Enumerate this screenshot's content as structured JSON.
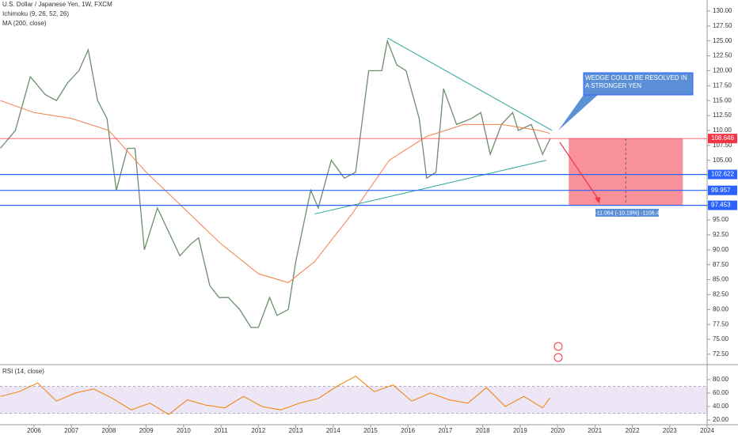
{
  "chart_data": [
    {
      "type": "line",
      "title": "U.S. Dollar / Japanese Yen, 1W, FXCM",
      "indicators": [
        "Ichimoku (9, 26, 52, 26)"
      ],
      "xlim": [
        2005.09,
        2024.0
      ],
      "ylim": [
        70.9,
        131.85
      ],
      "yticks": [
        {
          "value": 72.5,
          "label": "72.50"
        },
        {
          "value": 75,
          "label": "75.00"
        },
        {
          "value": 77.5,
          "label": "77.50"
        },
        {
          "value": 80,
          "label": "80.00"
        },
        {
          "value": 82.5,
          "label": "82.50"
        },
        {
          "value": 85,
          "label": "85.00"
        },
        {
          "value": 87.5,
          "label": "87.50"
        },
        {
          "value": 90,
          "label": "90.00"
        },
        {
          "value": 92.5,
          "label": "92.50"
        },
        {
          "value": 95,
          "label": "95.00"
        },
        {
          "value": 97.5,
          "label": "97.50"
        },
        {
          "value": 100,
          "label": "100.00"
        },
        {
          "value": 102.5,
          "label": "102.50"
        },
        {
          "value": 105,
          "label": "105.00"
        },
        {
          "value": 107.5,
          "label": "107.50"
        },
        {
          "value": 110,
          "label": "110.00"
        },
        {
          "value": 112.5,
          "label": "112.50"
        },
        {
          "value": 115,
          "label": "115.00"
        },
        {
          "value": 117.5,
          "label": "117.50"
        },
        {
          "value": 120,
          "label": "120.00"
        },
        {
          "value": 122.5,
          "label": "122.50"
        },
        {
          "value": 125,
          "label": "125.00"
        },
        {
          "value": 127.5,
          "label": "127.50"
        },
        {
          "value": 130,
          "label": "130.00"
        }
      ],
      "series": [
        {
          "name": "U.S. Dollar / Japanese Yen, 1W, FXCM",
          "color": "#6b8e6b",
          "x": [
            2005.1,
            2005.5,
            2005.9,
            2006.3,
            2006.6,
            2006.9,
            2007.2,
            2007.45,
            2007.7,
            2007.95,
            2008.2,
            2008.5,
            2008.7,
            2008.95,
            2009.3,
            2009.6,
            2009.9,
            2010.2,
            2010.4,
            2010.7,
            2010.95,
            2011.2,
            2011.5,
            2011.8,
            2012.0,
            2012.3,
            2012.5,
            2012.8,
            2013.0,
            2013.4,
            2013.6,
            2013.95,
            2014.3,
            2014.6,
            2014.95,
            2015.3,
            2015.45,
            2015.7,
            2015.95,
            2016.3,
            2016.5,
            2016.75,
            2016.95,
            2017.3,
            2017.7,
            2017.95,
            2018.2,
            2018.5,
            2018.8,
            2018.95,
            2019.3,
            2019.6,
            2019.8
          ],
          "values": [
            107,
            110,
            119,
            116,
            115,
            118,
            120,
            123.5,
            115,
            112,
            100,
            107,
            107,
            90,
            97,
            93,
            89,
            91,
            92,
            84,
            82,
            82,
            80,
            77,
            77,
            82,
            79,
            80,
            88,
            100,
            97,
            105,
            102,
            103,
            120,
            120,
            125,
            121,
            120,
            112,
            102,
            103,
            117,
            111,
            112,
            113,
            106,
            111,
            113,
            110,
            111,
            106,
            108.6
          ]
        },
        {
          "name": "MA (200, close)",
          "color": "#f57c4a",
          "x": [
            2005.1,
            2006,
            2007,
            2008,
            2009,
            2010,
            2011,
            2012,
            2012.8,
            2013.5,
            2014.5,
            2015.5,
            2016.5,
            2017.5,
            2018.5,
            2019.5,
            2019.8
          ],
          "values": [
            115,
            113,
            112,
            110,
            103,
            97,
            91,
            86,
            84.5,
            88,
            96,
            105,
            109,
            111,
            111,
            110,
            109.5
          ]
        }
      ],
      "levels": [
        {
          "value": 108.646,
          "color": "#f23645"
        },
        {
          "value": 102.622,
          "color": "#2962ff"
        },
        {
          "value": 99.957,
          "color": "#2962ff"
        },
        {
          "value": 97.453,
          "color": "#2962ff"
        }
      ],
      "trendlines": [
        {
          "x": [
            2015.45,
            2019.85
          ],
          "y": [
            125.5,
            110
          ],
          "color": "#26a69a"
        },
        {
          "x": [
            2013.5,
            2019.7
          ],
          "y": [
            96,
            105
          ],
          "color": "#26a69a"
        }
      ],
      "box": {
        "x": [
          2020.3,
          2023.35
        ],
        "color": "#f23645"
      },
      "annotation": "WEDGE COULD BE RESOLVED IN A STRONGER YEN",
      "measure": "-11.064 (-10.19%) -1106.4"
    },
    {
      "type": "line",
      "xlim": [
        2005.09,
        2024.0
      ],
      "ylim": [
        13,
        101
      ],
      "yticks": [
        {
          "value": 20,
          "label": "20.00"
        },
        {
          "value": 40,
          "label": "40.00"
        },
        {
          "value": 60,
          "label": "60.00"
        },
        {
          "value": 80,
          "label": "80.00"
        }
      ],
      "band": [
        30,
        70
      ],
      "xticks": [
        2006,
        2007,
        2008,
        2009,
        2010,
        2011,
        2012,
        2013,
        2014,
        2015,
        2016,
        2017,
        2018,
        2019,
        2020,
        2021,
        2022,
        2023,
        2024
      ],
      "series": [
        {
          "name": "RSI (14, close)",
          "color": "#f57c00",
          "x": [
            2005.1,
            2005.6,
            2006.1,
            2006.6,
            2007.1,
            2007.6,
            2008.1,
            2008.6,
            2009.1,
            2009.6,
            2010.1,
            2010.6,
            2011.1,
            2011.6,
            2012.1,
            2012.6,
            2013.1,
            2013.6,
            2014.1,
            2014.6,
            2015.1,
            2015.6,
            2016.1,
            2016.6,
            2017.1,
            2017.6,
            2018.1,
            2018.6,
            2019.1,
            2019.6,
            2019.8
          ],
          "values": [
            55,
            62,
            75,
            48,
            60,
            66,
            52,
            35,
            45,
            28,
            50,
            42,
            38,
            55,
            40,
            35,
            45,
            52,
            70,
            85,
            62,
            72,
            48,
            60,
            50,
            45,
            68,
            40,
            55,
            38,
            53
          ]
        }
      ]
    }
  ]
}
